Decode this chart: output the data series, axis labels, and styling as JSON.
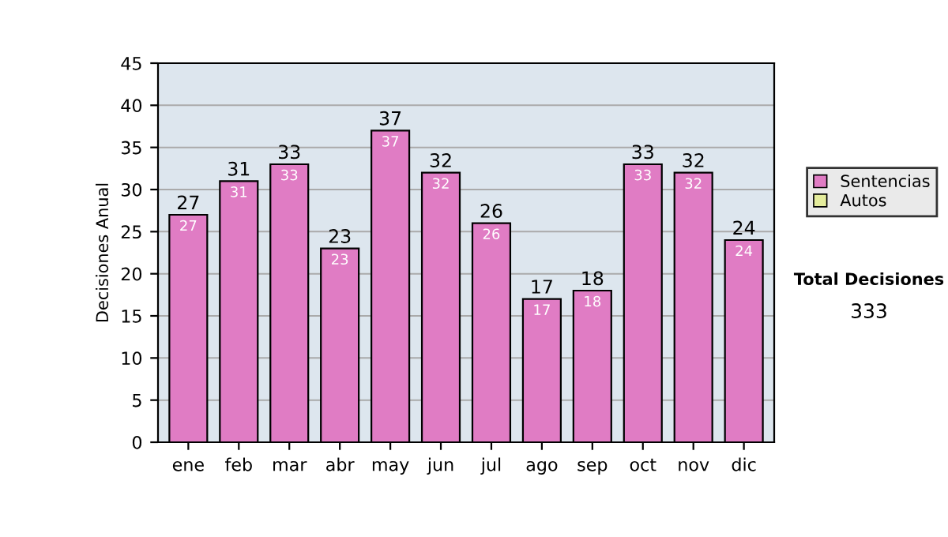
{
  "chart_data": {
    "type": "bar",
    "ylabel": "Decisiones Anual",
    "categories": [
      "ene",
      "feb",
      "mar",
      "abr",
      "may",
      "jun",
      "jul",
      "ago",
      "sep",
      "oct",
      "nov",
      "dic"
    ],
    "series": [
      {
        "name": "Sentencias",
        "color": "#e07cc4",
        "values": [
          27,
          31,
          33,
          23,
          37,
          32,
          26,
          17,
          18,
          33,
          32,
          24
        ]
      },
      {
        "name": "Autos",
        "color": "#e4ec9c",
        "values": [
          null,
          null,
          null,
          null,
          null,
          null,
          null,
          null,
          null,
          null,
          null,
          null
        ]
      }
    ],
    "stacked": true,
    "data_labels": true,
    "totals": [
      "27",
      "31",
      "33",
      "23",
      "37",
      "32",
      "26",
      "17",
      "18",
      "33",
      "32",
      "24"
    ],
    "ylim": [
      0,
      45
    ],
    "yticks": [
      0,
      5,
      10,
      15,
      20,
      25,
      30,
      35,
      40,
      45
    ],
    "grid": "y",
    "legend": "right",
    "annotations": [
      "Total Decisiones",
      "333"
    ]
  }
}
